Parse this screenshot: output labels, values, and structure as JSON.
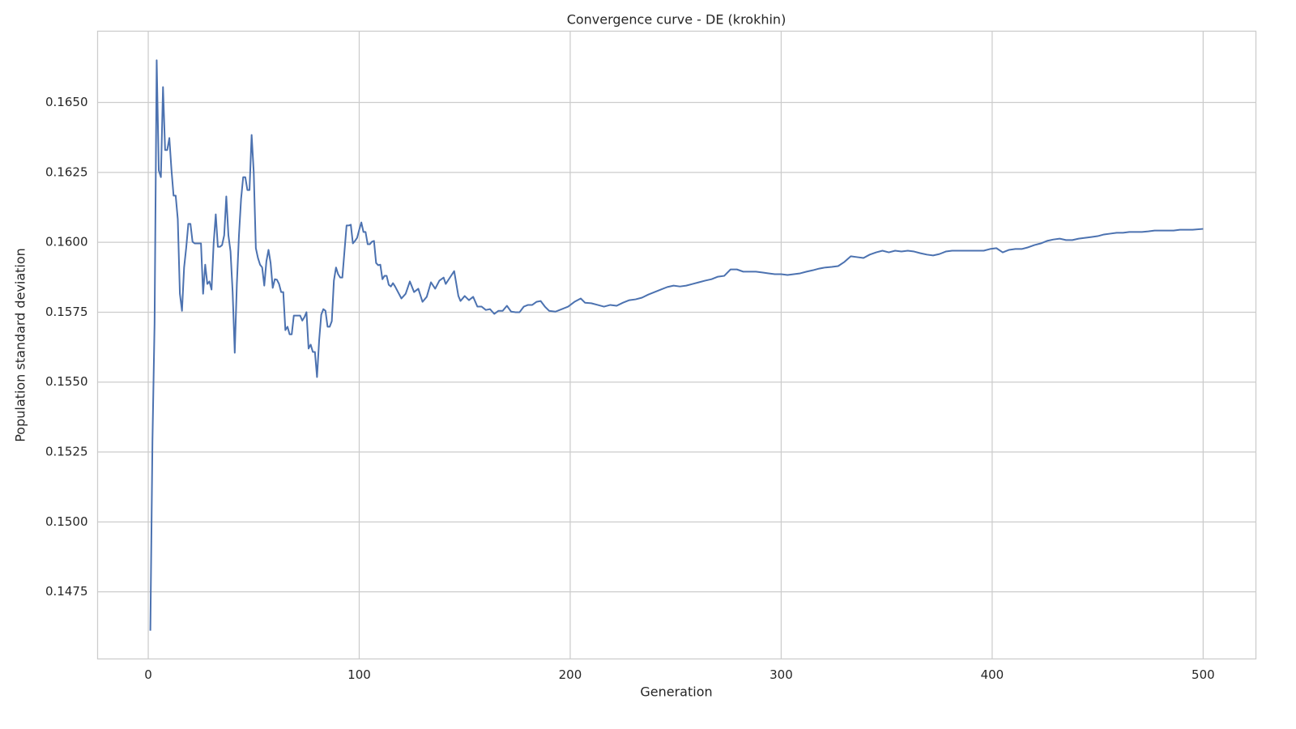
{
  "chart_data": {
    "type": "line",
    "title": "Convergence curve - DE (krokhin)",
    "x_label": "Generation",
    "y_label": "Population standard deviation",
    "xlim": [
      -24,
      525
    ],
    "ylim": [
      0.1451,
      0.16755
    ],
    "xticks": [
      0,
      100,
      200,
      300,
      400,
      500
    ],
    "yticks": [
      0.1475,
      {
        "value": 0.15,
        "label": "0.1500"
      },
      0.1525,
      {
        "value": 0.155,
        "label": "0.1550"
      },
      0.1575,
      {
        "value": 0.16,
        "label": "0.1600"
      },
      0.1625,
      {
        "value": 0.165,
        "label": "0.1650"
      }
    ],
    "grid": true,
    "x": [
      1,
      2,
      3,
      4,
      5,
      6,
      7,
      8,
      9,
      10,
      11,
      12,
      13,
      14,
      15,
      16,
      17,
      18,
      19,
      20,
      21,
      22,
      23,
      24,
      25,
      26,
      27,
      28,
      29,
      30,
      31,
      32,
      33,
      34,
      35,
      36,
      37,
      38,
      39,
      40,
      41,
      42,
      43,
      44,
      45,
      46,
      47,
      48,
      49,
      50,
      51,
      52,
      53,
      54,
      55,
      56,
      57,
      58,
      59,
      60,
      61,
      62,
      63,
      64,
      65,
      66,
      67,
      68,
      69,
      70,
      71,
      72,
      73,
      74,
      75,
      76,
      77,
      78,
      79,
      80,
      81,
      82,
      83,
      84,
      85,
      86,
      87,
      88,
      89,
      90,
      91,
      92,
      93,
      94,
      95,
      96,
      97,
      98,
      99,
      100,
      101,
      102,
      103,
      104,
      105,
      106,
      107,
      108,
      109,
      110,
      111,
      112,
      113,
      114,
      115,
      116,
      117,
      120,
      122,
      124,
      126,
      128,
      130,
      132,
      134,
      136,
      138,
      140,
      141,
      143,
      145,
      147,
      148,
      150,
      152,
      154,
      156,
      158,
      160,
      162,
      164,
      166,
      168,
      170,
      172,
      174,
      176,
      178,
      180,
      182,
      184,
      186,
      188,
      190,
      193,
      196,
      199,
      202,
      205,
      207,
      210,
      213,
      216,
      219,
      222,
      225,
      228,
      231,
      234,
      237,
      240,
      243,
      246,
      249,
      252,
      255,
      258,
      261,
      264,
      267,
      270,
      273,
      276,
      279,
      282,
      285,
      288,
      291,
      294,
      297,
      300,
      303,
      306,
      309,
      312,
      315,
      318,
      321,
      324,
      327,
      330,
      333,
      336,
      339,
      342,
      345,
      348,
      351,
      354,
      357,
      360,
      363,
      366,
      369,
      372,
      375,
      378,
      381,
      384,
      387,
      390,
      393,
      396,
      399,
      402,
      405,
      408,
      411,
      414,
      417,
      420,
      423,
      426,
      429,
      432,
      435,
      438,
      441,
      444,
      447,
      450,
      453,
      456,
      459,
      462,
      465,
      468,
      471,
      474,
      477,
      480,
      483,
      486,
      489,
      492,
      495,
      500
    ],
    "series": [
      {
        "name": "Population standard deviation",
        "color": "#4c72b0",
        "values": [
          0.14611,
          0.1529,
          0.1571,
          0.16651,
          0.16257,
          0.16233,
          0.16555,
          0.1633,
          0.1633,
          0.16373,
          0.1626,
          0.16167,
          0.16167,
          0.16083,
          0.15816,
          0.15755,
          0.1591,
          0.15981,
          0.16066,
          0.16066,
          0.16002,
          0.15996,
          0.15996,
          0.15996,
          0.15996,
          0.15816,
          0.1592,
          0.15851,
          0.1586,
          0.15831,
          0.15996,
          0.161,
          0.15984,
          0.15984,
          0.1599,
          0.16025,
          0.16164,
          0.16025,
          0.15967,
          0.15822,
          0.15605,
          0.15851,
          0.16025,
          0.16155,
          0.16233,
          0.16233,
          0.16187,
          0.16187,
          0.16384,
          0.16251,
          0.15979,
          0.15944,
          0.1592,
          0.1591,
          0.15845,
          0.15932,
          0.15973,
          0.15926,
          0.15837,
          0.15868,
          0.15866,
          0.15851,
          0.15822,
          0.15822,
          0.15686,
          0.15698,
          0.15671,
          0.15671,
          0.15738,
          0.15738,
          0.15738,
          0.15738,
          0.1572,
          0.15732,
          0.1575,
          0.1562,
          0.15634,
          0.15608,
          0.15608,
          0.15518,
          0.15649,
          0.15741,
          0.15761,
          0.15755,
          0.15698,
          0.15698,
          0.15718,
          0.15863,
          0.1591,
          0.15886,
          0.15874,
          0.15874,
          0.15967,
          0.1606,
          0.1606,
          0.16063,
          0.15996,
          0.16005,
          0.16016,
          0.16045,
          0.16071,
          0.16037,
          0.16037,
          0.15993,
          0.15993,
          0.16002,
          0.16005,
          0.15926,
          0.15918,
          0.1592,
          0.15868,
          0.1588,
          0.1588,
          0.15848,
          0.15842,
          0.15854,
          0.15842,
          0.15799,
          0.15816,
          0.1586,
          0.15822,
          0.15834,
          0.15787,
          0.15805,
          0.15857,
          0.15834,
          0.15863,
          0.15874,
          0.15851,
          0.15874,
          0.15897,
          0.15808,
          0.1579,
          0.15808,
          0.15793,
          0.15805,
          0.1577,
          0.1577,
          0.15758,
          0.15761,
          0.15744,
          0.15755,
          0.15755,
          0.15773,
          0.15752,
          0.1575,
          0.1575,
          0.1577,
          0.15776,
          0.15776,
          0.15787,
          0.1579,
          0.1577,
          0.15755,
          0.15752,
          0.15761,
          0.1577,
          0.15787,
          0.15799,
          0.15784,
          0.15782,
          0.15776,
          0.1577,
          0.15776,
          0.15773,
          0.15784,
          0.15793,
          0.15796,
          0.15802,
          0.15813,
          0.15822,
          0.15831,
          0.1584,
          0.15845,
          0.15842,
          0.15845,
          0.15851,
          0.15857,
          0.15863,
          0.15868,
          0.15877,
          0.1588,
          0.15903,
          0.15903,
          0.15895,
          0.15895,
          0.15895,
          0.15892,
          0.15889,
          0.15886,
          0.15886,
          0.15883,
          0.15886,
          0.15889,
          0.15895,
          0.159,
          0.15906,
          0.1591,
          0.15912,
          0.15915,
          0.1593,
          0.1595,
          0.15947,
          0.15944,
          0.15956,
          0.15964,
          0.1597,
          0.15964,
          0.1597,
          0.15967,
          0.1597,
          0.15967,
          0.15961,
          0.15956,
          0.15953,
          0.15958,
          0.15967,
          0.1597,
          0.1597,
          0.1597,
          0.1597,
          0.1597,
          0.1597,
          0.15976,
          0.15979,
          0.15964,
          0.15973,
          0.15976,
          0.15976,
          0.15982,
          0.1599,
          0.15996,
          0.16005,
          0.1601,
          0.16013,
          0.16008,
          0.16008,
          0.16013,
          0.16016,
          0.16019,
          0.16022,
          0.16028,
          0.16031,
          0.16034,
          0.16034,
          0.16037,
          0.16037,
          0.16037,
          0.16039,
          0.16042,
          0.16042,
          0.16042,
          0.16042,
          0.16045,
          0.16045,
          0.16045,
          0.16048
        ]
      }
    ]
  }
}
